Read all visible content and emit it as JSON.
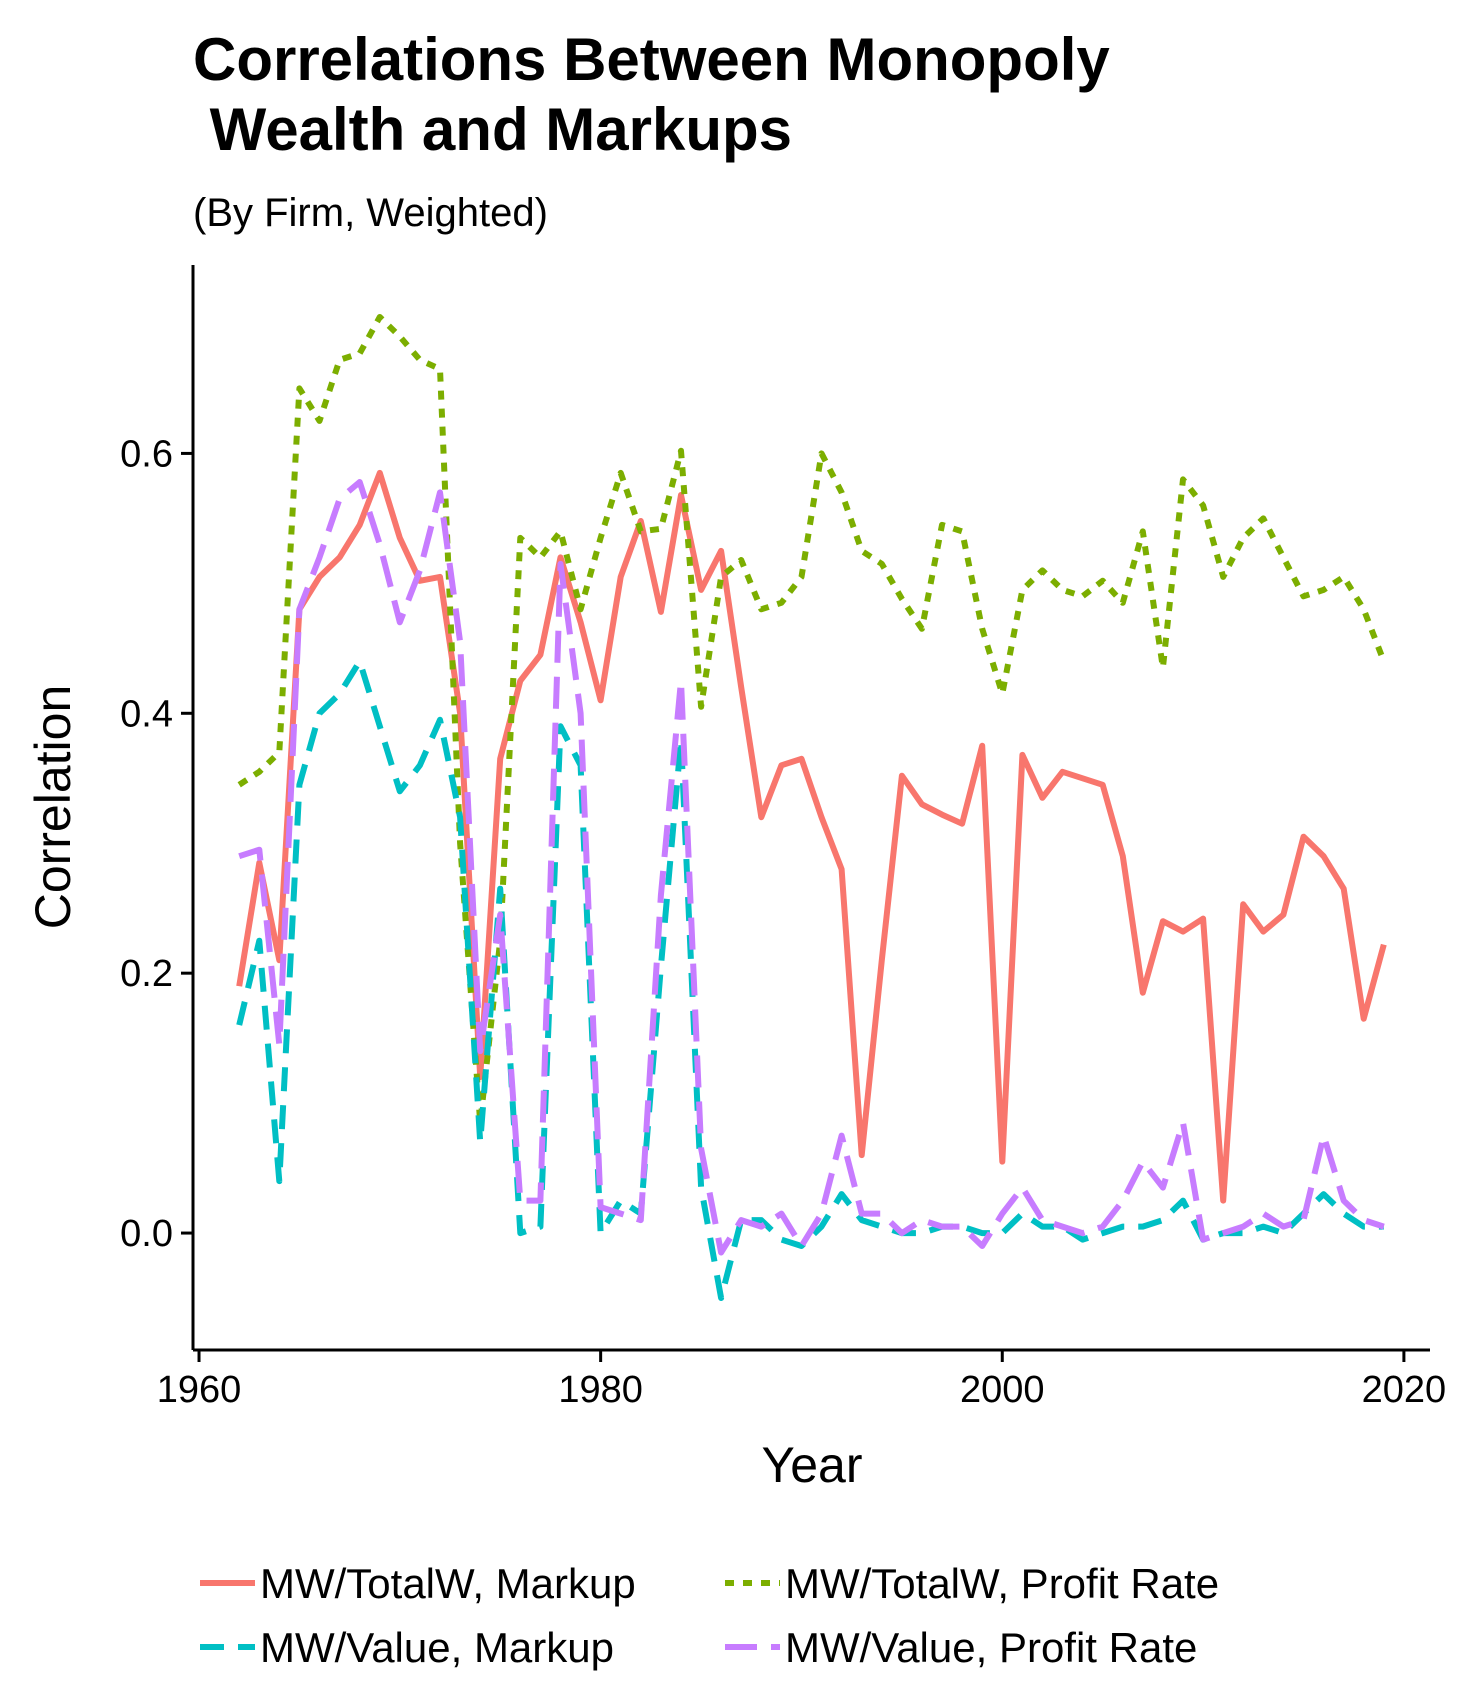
{
  "chart_data": {
    "type": "line",
    "title_line1": "Correlations Between Monopoly",
    "title_line2": " Wealth and Markups",
    "subtitle": "(By Firm, Weighted)",
    "xlabel": "Year",
    "ylabel": "Correlation",
    "xlim": [
      1959.7,
      2021.3
    ],
    "ylim": [
      -0.09,
      0.745
    ],
    "x_ticks": [
      1960,
      1980,
      2000,
      2020
    ],
    "y_ticks": [
      0.0,
      0.2,
      0.4,
      0.6
    ],
    "x_tick_labels": [
      "1960",
      "1980",
      "2000",
      "2020"
    ],
    "y_tick_labels": [
      "0.0",
      "0.2",
      "0.4",
      "0.6"
    ],
    "grid": false,
    "legend_position": "bottom",
    "x": [
      1962,
      1963,
      1964,
      1965,
      1966,
      1967,
      1968,
      1969,
      1970,
      1971,
      1972,
      1973,
      1974,
      1975,
      1976,
      1977,
      1978,
      1979,
      1980,
      1981,
      1982,
      1983,
      1984,
      1985,
      1986,
      1987,
      1988,
      1989,
      1990,
      1991,
      1992,
      1993,
      1994,
      1995,
      1996,
      1997,
      1998,
      1999,
      2000,
      2001,
      2002,
      2003,
      2004,
      2005,
      2006,
      2007,
      2008,
      2009,
      2010,
      2011,
      2012,
      2013,
      2014,
      2015,
      2016,
      2017,
      2018,
      2019
    ],
    "series": [
      {
        "name": "MW/TotalW, Markup",
        "color": "#F8766D",
        "dash": "solid",
        "values": [
          0.19,
          0.285,
          0.21,
          0.48,
          0.505,
          0.52,
          0.545,
          0.585,
          0.535,
          0.502,
          0.505,
          0.4,
          0.12,
          0.365,
          0.425,
          0.445,
          0.52,
          0.47,
          0.41,
          0.505,
          0.548,
          0.478,
          0.568,
          0.495,
          0.525,
          0.42,
          0.32,
          0.36,
          0.365,
          0.32,
          0.28,
          0.06,
          0.21,
          0.352,
          0.33,
          0.322,
          0.315,
          0.375,
          0.055,
          0.368,
          0.335,
          0.355,
          0.35,
          0.345,
          0.29,
          0.185,
          0.24,
          0.232,
          0.242,
          0.025,
          0.253,
          0.232,
          0.245,
          0.305,
          0.29,
          0.265,
          0.165,
          0.222
        ]
      },
      {
        "name": "MW/TotalW, Profit Rate",
        "color": "#7CAE00",
        "dash": "dotted",
        "values": [
          0.345,
          0.355,
          0.37,
          0.65,
          0.625,
          0.672,
          0.677,
          0.705,
          0.69,
          0.672,
          0.665,
          0.3,
          0.085,
          0.225,
          0.535,
          0.52,
          0.54,
          0.48,
          0.535,
          0.585,
          0.54,
          0.542,
          0.602,
          0.405,
          0.505,
          0.518,
          0.48,
          0.485,
          0.505,
          0.6,
          0.57,
          0.525,
          0.515,
          0.488,
          0.465,
          0.545,
          0.54,
          0.465,
          0.415,
          0.495,
          0.51,
          0.495,
          0.49,
          0.502,
          0.485,
          0.54,
          0.435,
          0.58,
          0.56,
          0.505,
          0.535,
          0.55,
          0.52,
          0.49,
          0.495,
          0.505,
          0.48,
          0.44
        ]
      },
      {
        "name": "MW/Value, Markup",
        "color": "#00BFC4",
        "dash": "dashed",
        "values": [
          0.16,
          0.225,
          0.04,
          0.345,
          0.4,
          0.415,
          0.44,
          0.39,
          0.34,
          0.36,
          0.395,
          0.32,
          0.07,
          0.265,
          0.0,
          0.005,
          0.39,
          0.36,
          0.0,
          0.025,
          0.015,
          0.205,
          0.38,
          0.035,
          -0.05,
          0.01,
          0.01,
          -0.005,
          -0.01,
          0.005,
          0.03,
          0.01,
          0.005,
          0.0,
          0.0,
          0.005,
          0.005,
          0.0,
          0.0,
          0.015,
          0.005,
          0.005,
          -0.005,
          0.0,
          0.005,
          0.005,
          0.01,
          0.025,
          -0.005,
          0.0,
          0.0,
          0.005,
          0.0,
          0.015,
          0.03,
          0.015,
          0.005,
          0.005
        ]
      },
      {
        "name": "MW/Value, Profit Rate",
        "color": "#C77CFF",
        "dash": "longdash",
        "values": [
          0.29,
          0.295,
          0.145,
          0.48,
          0.52,
          0.565,
          0.578,
          0.53,
          0.47,
          0.51,
          0.57,
          0.455,
          0.14,
          0.245,
          0.025,
          0.025,
          0.515,
          0.4,
          0.02,
          0.015,
          0.01,
          0.26,
          0.425,
          0.065,
          -0.015,
          0.01,
          0.005,
          0.015,
          -0.01,
          0.015,
          0.075,
          0.015,
          0.015,
          0.0,
          0.01,
          0.005,
          0.005,
          -0.01,
          0.015,
          0.035,
          0.01,
          0.005,
          0.0,
          0.005,
          0.025,
          0.055,
          0.035,
          0.085,
          -0.005,
          0.0,
          0.005,
          0.015,
          0.005,
          0.01,
          0.075,
          0.025,
          0.01,
          0.005
        ]
      }
    ]
  }
}
